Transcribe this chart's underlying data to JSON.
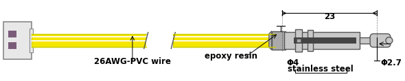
{
  "bg_color": "#ffffff",
  "wire_yellow": "#f5e600",
  "wire_stripe": "#ffffff",
  "wire_dark": "#cccc00",
  "connector_fill": "#e8e8e8",
  "connector_border": "#888888",
  "connector_pin": "#7a5c7a",
  "steel_fill": "#c8c8c8",
  "steel_border": "#555555",
  "epoxy_fill": "#aaaaaa",
  "sensor_dark": "#444444",
  "text_color": "#000000",
  "label_wire": "26AWG-PVC wire",
  "label_epoxy": "epoxy resin",
  "label_phi4": "Φ4",
  "label_ss": "stainless steel",
  "label_phi27": "Φ2.7",
  "label_23": "23",
  "fig_width": 5.9,
  "fig_height": 1.19,
  "dpi": 100
}
